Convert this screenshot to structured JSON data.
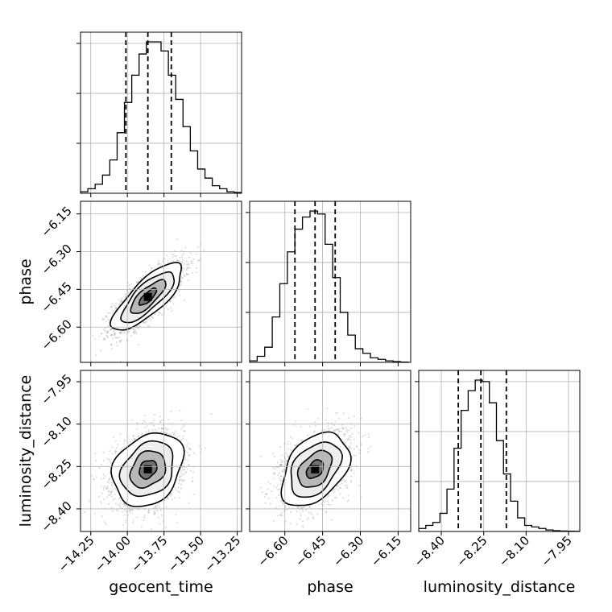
{
  "chart_data": {
    "type": "corner",
    "parameters": [
      {
        "name": "geocent_time",
        "label": "geocent_time",
        "range": [
          -14.32,
          -13.22
        ],
        "ticks": [
          -14.25,
          -14.0,
          -13.75,
          -13.5,
          -13.25
        ],
        "tick_labels": [
          "−14.25",
          "−14.00",
          "−13.75",
          "−13.50",
          "−13.25"
        ],
        "quantiles": [
          -14.01,
          -13.86,
          -13.7
        ],
        "hist": {
          "bin_edges": [
            -14.32,
            -14.27,
            -14.22,
            -14.17,
            -14.12,
            -14.07,
            -14.02,
            -13.97,
            -13.92,
            -13.87,
            -13.82,
            -13.77,
            -13.72,
            -13.67,
            -13.62,
            -13.57,
            -13.52,
            -13.47,
            -13.42,
            -13.37,
            -13.32,
            -13.27,
            -13.22
          ],
          "counts": [
            0.01,
            0.03,
            0.06,
            0.12,
            0.22,
            0.4,
            0.6,
            0.78,
            0.92,
            1.0,
            1.0,
            0.94,
            0.78,
            0.62,
            0.44,
            0.28,
            0.16,
            0.1,
            0.05,
            0.03,
            0.01,
            0.005
          ]
        }
      },
      {
        "name": "phase",
        "label": "phase",
        "range": [
          -6.74,
          -6.1
        ],
        "ticks": [
          -6.6,
          -6.45,
          -6.3,
          -6.15
        ],
        "tick_labels": [
          "−6.60",
          "−6.45",
          "−6.30",
          "−6.15"
        ],
        "quantiles": [
          -6.56,
          -6.48,
          -6.4
        ],
        "hist": {
          "bin_edges": [
            -6.74,
            -6.71,
            -6.68,
            -6.65,
            -6.62,
            -6.59,
            -6.56,
            -6.53,
            -6.5,
            -6.47,
            -6.44,
            -6.41,
            -6.38,
            -6.35,
            -6.32,
            -6.29,
            -6.26,
            -6.23,
            -6.2,
            -6.17,
            -6.14,
            -6.11
          ],
          "counts": [
            0.01,
            0.04,
            0.1,
            0.3,
            0.52,
            0.73,
            0.88,
            0.96,
            1.0,
            0.98,
            0.78,
            0.56,
            0.33,
            0.18,
            0.09,
            0.06,
            0.03,
            0.02,
            0.01,
            0.005,
            0.002
          ]
        }
      },
      {
        "name": "luminosity_distance",
        "label": "luminosity_distance",
        "range": [
          -8.48,
          -7.91
        ],
        "ticks": [
          -8.4,
          -8.25,
          -8.1,
          -7.95
        ],
        "tick_labels": [
          "−8.40",
          "−8.25",
          "−8.10",
          "−7.95"
        ],
        "quantiles": [
          -8.34,
          -8.26,
          -8.17
        ],
        "hist": {
          "bin_edges": [
            -8.48,
            -8.455,
            -8.43,
            -8.405,
            -8.38,
            -8.355,
            -8.33,
            -8.305,
            -8.28,
            -8.255,
            -8.23,
            -8.205,
            -8.18,
            -8.155,
            -8.13,
            -8.105,
            -8.08,
            -8.055,
            -8.03,
            -8.005,
            -7.98,
            -7.955,
            -7.93,
            -7.91
          ],
          "counts": [
            0.02,
            0.04,
            0.06,
            0.12,
            0.28,
            0.55,
            0.8,
            0.93,
            1.0,
            0.99,
            0.85,
            0.6,
            0.38,
            0.2,
            0.09,
            0.04,
            0.03,
            0.02,
            0.01,
            0.005,
            0.003,
            0.002,
            0.001
          ]
        }
      }
    ],
    "pairs": [
      {
        "x": "geocent_time",
        "y": "phase",
        "mean": [
          -13.86,
          -6.48
        ],
        "sd": [
          0.12,
          0.067
        ],
        "corr": 0.78
      },
      {
        "x": "geocent_time",
        "y": "luminosity_distance",
        "mean": [
          -13.86,
          -8.26
        ],
        "sd": [
          0.12,
          0.065
        ],
        "corr": 0.25
      },
      {
        "x": "phase",
        "y": "luminosity_distance",
        "mean": [
          -6.48,
          -8.26
        ],
        "sd": [
          0.067,
          0.065
        ],
        "corr": 0.4
      }
    ],
    "contour_levels_sigma": [
      0.5,
      1.0,
      1.5,
      2.0
    ],
    "grid": true,
    "legend": "none"
  }
}
